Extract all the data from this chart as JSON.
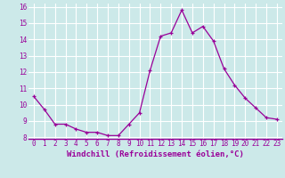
{
  "x": [
    0,
    1,
    2,
    3,
    4,
    5,
    6,
    7,
    8,
    9,
    10,
    11,
    12,
    13,
    14,
    15,
    16,
    17,
    18,
    19,
    20,
    21,
    22,
    23
  ],
  "y": [
    10.5,
    9.7,
    8.8,
    8.8,
    8.5,
    8.3,
    8.3,
    8.1,
    8.1,
    8.8,
    9.5,
    12.1,
    14.2,
    14.4,
    15.8,
    14.4,
    14.8,
    13.9,
    12.2,
    11.2,
    10.4,
    9.8,
    9.2,
    9.1
  ],
  "line_color": "#990099",
  "marker": "+",
  "bg_color": "#cce9e9",
  "grid_color": "#ffffff",
  "xlabel": "Windchill (Refroidissement éolien,°C)",
  "tick_color": "#990099",
  "ylim": [
    8,
    16
  ],
  "xlim": [
    -0.5,
    23.5
  ],
  "yticks": [
    8,
    9,
    10,
    11,
    12,
    13,
    14,
    15,
    16
  ],
  "xticks": [
    0,
    1,
    2,
    3,
    4,
    5,
    6,
    7,
    8,
    9,
    10,
    11,
    12,
    13,
    14,
    15,
    16,
    17,
    18,
    19,
    20,
    21,
    22,
    23
  ],
  "tick_fontsize": 5.5,
  "xlabel_fontsize": 6.5,
  "spine_color": "#990099"
}
